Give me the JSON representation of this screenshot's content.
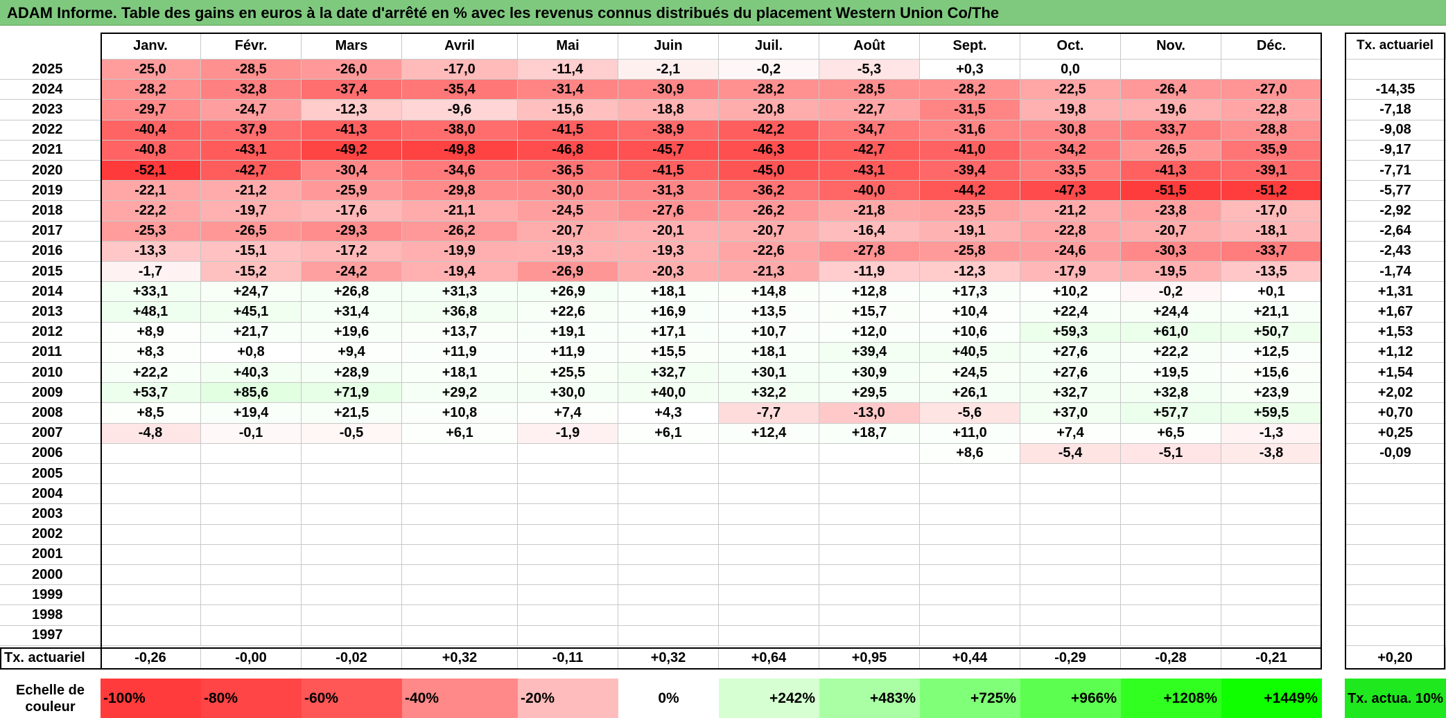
{
  "title": "ADAM Informe. Table des gains en euros à la date d'arrêté en % avec les revenus connus distribués du placement Western Union Co/The",
  "chart_data": {
    "type": "heatmap",
    "title": "ADAM Informe. Table des gains en euros à la date d'arrêté en % avec les revenus connus distribués du placement Western Union Co/The",
    "columns": [
      "Janv.",
      "Févr.",
      "Mars",
      "Avril",
      "Mai",
      "Juin",
      "Juil.",
      "Août",
      "Sept.",
      "Oct.",
      "Nov.",
      "Déc."
    ],
    "tx_header": "Tx. actuariel",
    "rows": [
      {
        "year": "2025",
        "values": [
          "-25,0",
          "-28,5",
          "-26,0",
          "-17,0",
          "-11,4",
          "-2,1",
          "-0,2",
          "-5,3",
          "+0,3",
          "0,0",
          "",
          ""
        ],
        "tx": ""
      },
      {
        "year": "2024",
        "values": [
          "-28,2",
          "-32,8",
          "-37,4",
          "-35,4",
          "-31,4",
          "-30,9",
          "-28,2",
          "-28,5",
          "-28,2",
          "-22,5",
          "-26,4",
          "-27,0"
        ],
        "tx": "-14,35"
      },
      {
        "year": "2023",
        "values": [
          "-29,7",
          "-24,7",
          "-12,3",
          "-9,6",
          "-15,6",
          "-18,8",
          "-20,8",
          "-22,7",
          "-31,5",
          "-19,8",
          "-19,6",
          "-22,8"
        ],
        "tx": "-7,18"
      },
      {
        "year": "2022",
        "values": [
          "-40,4",
          "-37,9",
          "-41,3",
          "-38,0",
          "-41,5",
          "-38,9",
          "-42,2",
          "-34,7",
          "-31,6",
          "-30,8",
          "-33,7",
          "-28,8"
        ],
        "tx": "-9,08"
      },
      {
        "year": "2021",
        "values": [
          "-40,8",
          "-43,1",
          "-49,2",
          "-49,8",
          "-46,8",
          "-45,7",
          "-46,3",
          "-42,7",
          "-41,0",
          "-34,2",
          "-26,5",
          "-35,9"
        ],
        "tx": "-9,17"
      },
      {
        "year": "2020",
        "values": [
          "-52,1",
          "-42,7",
          "-30,4",
          "-34,6",
          "-36,5",
          "-41,5",
          "-45,0",
          "-43,1",
          "-39,4",
          "-33,5",
          "-41,3",
          "-39,1"
        ],
        "tx": "-7,71"
      },
      {
        "year": "2019",
        "values": [
          "-22,1",
          "-21,2",
          "-25,9",
          "-29,8",
          "-30,0",
          "-31,3",
          "-36,2",
          "-40,0",
          "-44,2",
          "-47,3",
          "-51,5",
          "-51,2"
        ],
        "tx": "-5,77"
      },
      {
        "year": "2018",
        "values": [
          "-22,2",
          "-19,7",
          "-17,6",
          "-21,1",
          "-24,5",
          "-27,6",
          "-26,2",
          "-21,8",
          "-23,5",
          "-21,2",
          "-23,8",
          "-17,0"
        ],
        "tx": "-2,92"
      },
      {
        "year": "2017",
        "values": [
          "-25,3",
          "-26,5",
          "-29,3",
          "-26,2",
          "-20,7",
          "-20,1",
          "-20,7",
          "-16,4",
          "-19,1",
          "-22,8",
          "-20,7",
          "-18,1"
        ],
        "tx": "-2,64"
      },
      {
        "year": "2016",
        "values": [
          "-13,3",
          "-15,1",
          "-17,2",
          "-19,9",
          "-19,3",
          "-19,3",
          "-22,6",
          "-27,8",
          "-25,8",
          "-24,6",
          "-30,3",
          "-33,7"
        ],
        "tx": "-2,43"
      },
      {
        "year": "2015",
        "values": [
          "-1,7",
          "-15,2",
          "-24,2",
          "-19,4",
          "-26,9",
          "-20,3",
          "-21,3",
          "-11,9",
          "-12,3",
          "-17,9",
          "-19,5",
          "-13,5"
        ],
        "tx": "-1,74"
      },
      {
        "year": "2014",
        "values": [
          "+33,1",
          "+24,7",
          "+26,8",
          "+31,3",
          "+26,9",
          "+18,1",
          "+14,8",
          "+12,8",
          "+17,3",
          "+10,2",
          "-0,2",
          "+0,1"
        ],
        "tx": "+1,31"
      },
      {
        "year": "2013",
        "values": [
          "+48,1",
          "+45,1",
          "+31,4",
          "+36,8",
          "+22,6",
          "+16,9",
          "+13,5",
          "+15,7",
          "+10,4",
          "+22,4",
          "+24,4",
          "+21,1"
        ],
        "tx": "+1,67"
      },
      {
        "year": "2012",
        "values": [
          "+8,9",
          "+21,7",
          "+19,6",
          "+13,7",
          "+19,1",
          "+17,1",
          "+10,7",
          "+12,0",
          "+10,6",
          "+59,3",
          "+61,0",
          "+50,7"
        ],
        "tx": "+1,53"
      },
      {
        "year": "2011",
        "values": [
          "+8,3",
          "+0,8",
          "+9,4",
          "+11,9",
          "+11,9",
          "+15,5",
          "+18,1",
          "+39,4",
          "+40,5",
          "+27,6",
          "+22,2",
          "+12,5"
        ],
        "tx": "+1,12"
      },
      {
        "year": "2010",
        "values": [
          "+22,2",
          "+40,3",
          "+28,9",
          "+18,1",
          "+25,5",
          "+32,7",
          "+30,1",
          "+30,9",
          "+24,5",
          "+27,6",
          "+19,5",
          "+15,6"
        ],
        "tx": "+1,54"
      },
      {
        "year": "2009",
        "values": [
          "+53,7",
          "+85,6",
          "+71,9",
          "+29,2",
          "+30,0",
          "+40,0",
          "+32,2",
          "+29,5",
          "+26,1",
          "+32,7",
          "+32,8",
          "+23,9"
        ],
        "tx": "+2,02"
      },
      {
        "year": "2008",
        "values": [
          "+8,5",
          "+19,4",
          "+21,5",
          "+10,8",
          "+7,4",
          "+4,3",
          "-7,7",
          "-13,0",
          "-5,6",
          "+37,0",
          "+57,7",
          "+59,5"
        ],
        "tx": "+0,70"
      },
      {
        "year": "2007",
        "values": [
          "-4,8",
          "-0,1",
          "-0,5",
          "+6,1",
          "-1,9",
          "+6,1",
          "+12,4",
          "+18,7",
          "+11,0",
          "+7,4",
          "+6,5",
          "-1,3"
        ],
        "tx": "+0,25"
      },
      {
        "year": "2006",
        "values": [
          "",
          "",
          "",
          "",
          "",
          "",
          "",
          "",
          "+8,6",
          "-5,4",
          "-5,1",
          "-3,8"
        ],
        "tx": "-0,09"
      },
      {
        "year": "2005",
        "values": [
          "",
          "",
          "",
          "",
          "",
          "",
          "",
          "",
          "",
          "",
          "",
          ""
        ],
        "tx": ""
      },
      {
        "year": "2004",
        "values": [
          "",
          "",
          "",
          "",
          "",
          "",
          "",
          "",
          "",
          "",
          "",
          ""
        ],
        "tx": ""
      },
      {
        "year": "2003",
        "values": [
          "",
          "",
          "",
          "",
          "",
          "",
          "",
          "",
          "",
          "",
          "",
          ""
        ],
        "tx": ""
      },
      {
        "year": "2002",
        "values": [
          "",
          "",
          "",
          "",
          "",
          "",
          "",
          "",
          "",
          "",
          "",
          ""
        ],
        "tx": ""
      },
      {
        "year": "2001",
        "values": [
          "",
          "",
          "",
          "",
          "",
          "",
          "",
          "",
          "",
          "",
          "",
          ""
        ],
        "tx": ""
      },
      {
        "year": "2000",
        "values": [
          "",
          "",
          "",
          "",
          "",
          "",
          "",
          "",
          "",
          "",
          "",
          ""
        ],
        "tx": ""
      },
      {
        "year": "1999",
        "values": [
          "",
          "",
          "",
          "",
          "",
          "",
          "",
          "",
          "",
          "",
          "",
          ""
        ],
        "tx": ""
      },
      {
        "year": "1998",
        "values": [
          "",
          "",
          "",
          "",
          "",
          "",
          "",
          "",
          "",
          "",
          "",
          ""
        ],
        "tx": ""
      },
      {
        "year": "1997",
        "values": [
          "",
          "",
          "",
          "",
          "",
          "",
          "",
          "",
          "",
          "",
          "",
          ""
        ],
        "tx": ""
      }
    ],
    "footer": {
      "label": "Tx. actuariel",
      "values": [
        "-0,26",
        "-0,00",
        "-0,02",
        "+0,32",
        "-0,11",
        "+0,32",
        "+0,64",
        "+0,95",
        "+0,44",
        "-0,29",
        "-0,28",
        "-0,21"
      ],
      "tx": "+0,20"
    },
    "legend": {
      "label": "Echelle de couleur",
      "items": [
        {
          "text": "-100%",
          "color": "#ff3b3b"
        },
        {
          "text": "-80%",
          "color": "#ff4545"
        },
        {
          "text": "-60%",
          "color": "#ff5656"
        },
        {
          "text": "-40%",
          "color": "#ff8888"
        },
        {
          "text": "-20%",
          "color": "#ffbcbc"
        },
        {
          "text": "0%",
          "color": "#ffffff"
        },
        {
          "text": "+242%",
          "color": "#d6ffd2"
        },
        {
          "text": "+483%",
          "color": "#aaffa4"
        },
        {
          "text": "+725%",
          "color": "#80ff78"
        },
        {
          "text": "+966%",
          "color": "#5cff50"
        },
        {
          "text": "+1208%",
          "color": "#30ff20"
        },
        {
          "text": "+1449%",
          "color": "#10ff00"
        }
      ],
      "tx_label": "Tx. actua. 10%",
      "tx_color": "#1fe81f"
    }
  }
}
